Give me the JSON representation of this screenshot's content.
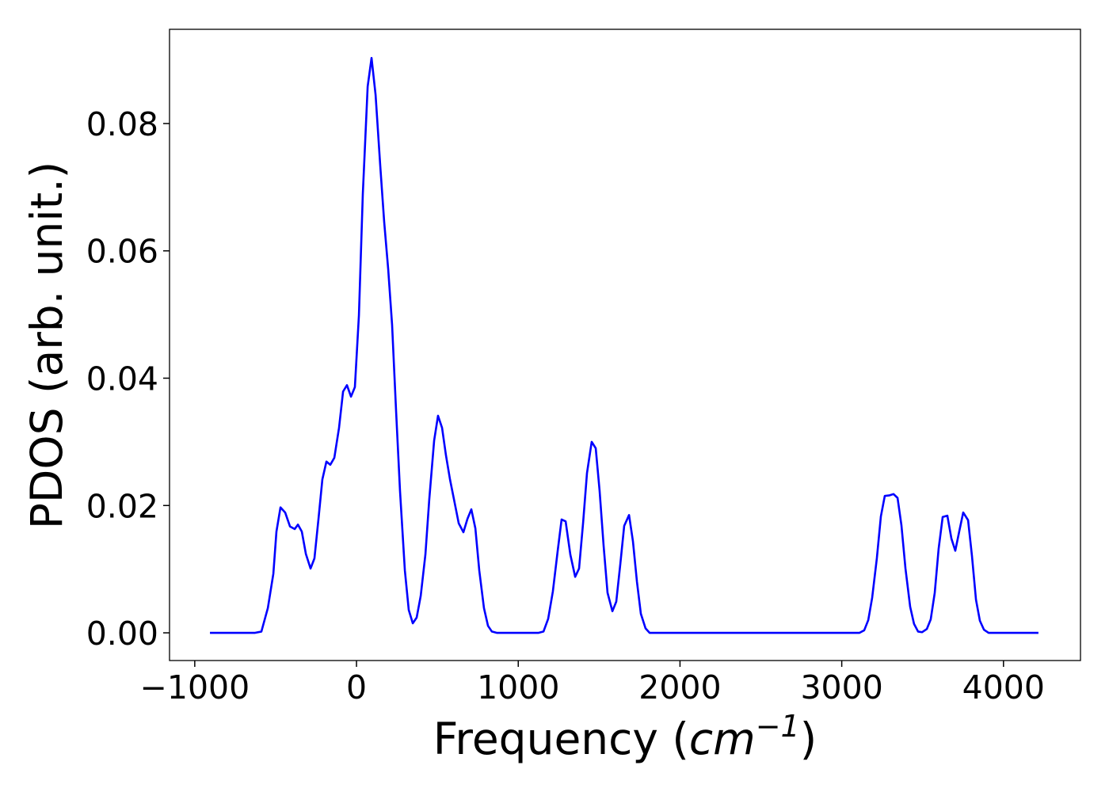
{
  "chart_data": {
    "type": "line",
    "xlabel": {
      "text": "Frequency (",
      "var": "cm",
      "sup": "−1",
      "close": ")"
    },
    "ylabel": "PDOS (arb. unit.)",
    "xlim": [
      -1156,
      4476
    ],
    "ylim": [
      -0.00435,
      0.0948
    ],
    "xticks": [
      {
        "value": -1000,
        "label": "−1000"
      },
      0,
      1000,
      2000,
      3000,
      4000
    ],
    "yticks": [
      {
        "value": 0,
        "label": "0.00"
      },
      {
        "value": 0.02,
        "label": "0.02"
      },
      {
        "value": 0.04,
        "label": "0.04"
      },
      {
        "value": 0.06,
        "label": "0.06"
      },
      {
        "value": 0.08,
        "label": "0.08"
      }
    ],
    "series": [
      {
        "color": "#0000ff",
        "x": [
          -906,
          -627,
          -588,
          -548,
          -514,
          -495,
          -470,
          -441,
          -411,
          -382,
          -362,
          -338,
          -313,
          -284,
          -260,
          -235,
          -211,
          -186,
          -162,
          -137,
          -108,
          -83,
          -59,
          -34,
          -10,
          15,
          39,
          69,
          93,
          118,
          147,
          171,
          196,
          220,
          245,
          269,
          299,
          323,
          348,
          372,
          397,
          426,
          450,
          480,
          504,
          529,
          553,
          578,
          607,
          632,
          661,
          686,
          710,
          735,
          759,
          788,
          813,
          837,
          867,
          1126,
          1156,
          1185,
          1214,
          1244,
          1268,
          1293,
          1322,
          1352,
          1376,
          1401,
          1425,
          1454,
          1479,
          1503,
          1528,
          1552,
          1582,
          1606,
          1631,
          1655,
          1685,
          1709,
          1734,
          1758,
          1787,
          1812,
          3110,
          3139,
          3164,
          3188,
          3217,
          3242,
          3266,
          3296,
          3320,
          3345,
          3369,
          3394,
          3423,
          3447,
          3472,
          3497,
          3526,
          3550,
          3575,
          3599,
          3624,
          3653,
          3678,
          3702,
          3727,
          3751,
          3781,
          3805,
          3830,
          3854,
          3879,
          3908,
          4216
        ],
        "values": [
          0,
          0,
          0.0002,
          0.0039,
          0.0093,
          0.0159,
          0.0197,
          0.0189,
          0.0167,
          0.0163,
          0.017,
          0.0159,
          0.0124,
          0.0101,
          0.0117,
          0.0179,
          0.0241,
          0.0269,
          0.0264,
          0.0275,
          0.0322,
          0.0379,
          0.0389,
          0.0371,
          0.0386,
          0.0499,
          0.0689,
          0.0858,
          0.0903,
          0.0845,
          0.0733,
          0.0646,
          0.0571,
          0.0484,
          0.0347,
          0.0223,
          0.0098,
          0.0036,
          0.0015,
          0.0024,
          0.0058,
          0.0123,
          0.021,
          0.0302,
          0.0341,
          0.0322,
          0.0279,
          0.0241,
          0.0204,
          0.0172,
          0.0158,
          0.0179,
          0.0194,
          0.0164,
          0.0098,
          0.0039,
          0.0011,
          0.0002,
          0,
          0,
          0.0002,
          0.0022,
          0.0065,
          0.0129,
          0.0178,
          0.0175,
          0.0123,
          0.0088,
          0.0101,
          0.0173,
          0.0251,
          0.03,
          0.029,
          0.0223,
          0.0136,
          0.0063,
          0.0034,
          0.0049,
          0.0108,
          0.0168,
          0.0185,
          0.0144,
          0.008,
          0.003,
          0.0007,
          0,
          0,
          0.0004,
          0.002,
          0.0055,
          0.0117,
          0.0183,
          0.0215,
          0.0216,
          0.0218,
          0.0212,
          0.0169,
          0.0101,
          0.0041,
          0.0014,
          0.0002,
          0.0001,
          0.0006,
          0.0021,
          0.0063,
          0.0132,
          0.0182,
          0.0184,
          0.0148,
          0.0129,
          0.016,
          0.0189,
          0.0177,
          0.0121,
          0.0052,
          0.0019,
          0.0005,
          0,
          0
        ]
      }
    ]
  }
}
